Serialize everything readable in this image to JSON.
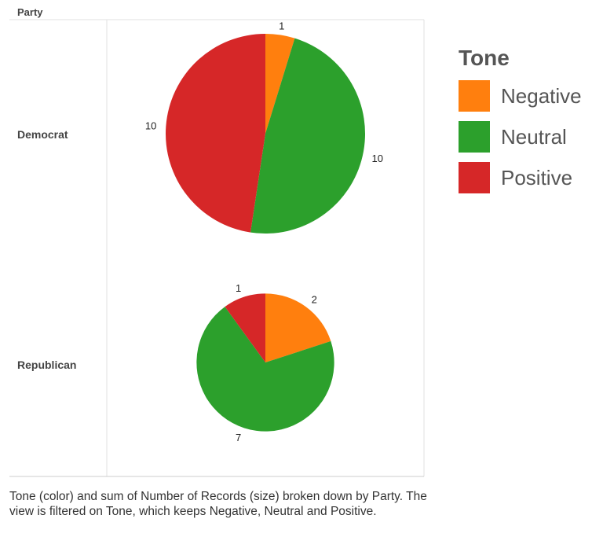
{
  "chart_data": {
    "type": "pie",
    "row_header": "Party",
    "legend_title": "Tone",
    "legend": [
      {
        "name": "Negative",
        "color": "#ff7f0e"
      },
      {
        "name": "Neutral",
        "color": "#2ca02c"
      },
      {
        "name": "Positive",
        "color": "#d62728"
      }
    ],
    "pies": [
      {
        "category": "Democrat",
        "slices": [
          {
            "tone": "Negative",
            "value": 1,
            "color": "#ff7f0e"
          },
          {
            "tone": "Neutral",
            "value": 10,
            "color": "#2ca02c"
          },
          {
            "tone": "Positive",
            "value": 10,
            "color": "#d62728"
          }
        ]
      },
      {
        "category": "Republican",
        "slices": [
          {
            "tone": "Negative",
            "value": 2,
            "color": "#ff7f0e"
          },
          {
            "tone": "Neutral",
            "value": 7,
            "color": "#2ca02c"
          },
          {
            "tone": "Positive",
            "value": 1,
            "color": "#d62728"
          }
        ]
      }
    ],
    "caption": "Tone (color) and sum of Number of Records (size) broken down by Party. The view is filtered on Tone, which keeps Negative, Neutral and Positive."
  }
}
